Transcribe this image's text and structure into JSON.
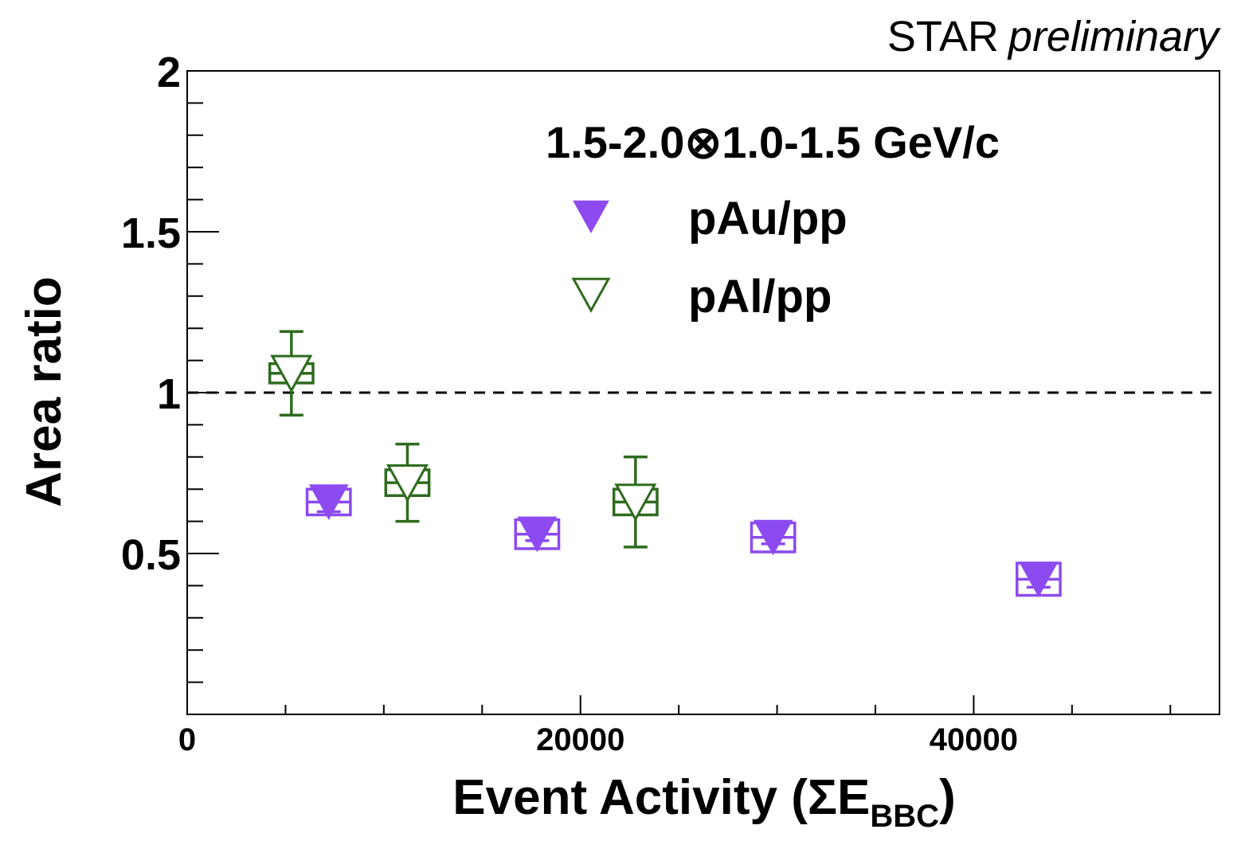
{
  "chart_data": {
    "type": "scatter",
    "header": {
      "main": "STAR",
      "italic": "preliminary"
    },
    "legend": {
      "title": "1.5-2.0⊗1.0-1.5 GeV/c",
      "placement": "top-center"
    },
    "xlabel": {
      "main": "Event Activity (ΣE",
      "sub": "BBC",
      "close": ")"
    },
    "ylabel": "Area ratio",
    "xlim": [
      0,
      52500
    ],
    "ylim": [
      0,
      2
    ],
    "x_ticks": [
      0,
      20000,
      40000
    ],
    "x_tick_labels": [
      "0",
      "20000",
      "40000"
    ],
    "y_ticks": [
      0.5,
      1,
      1.5,
      2
    ],
    "y_tick_labels": [
      "0.5",
      "1",
      "1.5",
      "2"
    ],
    "reference_line": {
      "y": 1,
      "style": "dashed"
    },
    "grid": false,
    "series": [
      {
        "name": "pAu/pp",
        "marker": "filled-triangle-down",
        "color": "#8c4af0",
        "points": [
          {
            "x": 7200,
            "y": 0.66,
            "stat_err": 0.03,
            "sys_err": 0.04,
            "x_box_half": 1100
          },
          {
            "x": 17800,
            "y": 0.56,
            "stat_err": 0.02,
            "sys_err": 0.045,
            "x_box_half": 1100
          },
          {
            "x": 29800,
            "y": 0.55,
            "stat_err": 0.02,
            "sys_err": 0.045,
            "x_box_half": 1100
          },
          {
            "x": 43300,
            "y": 0.42,
            "stat_err": 0.025,
            "sys_err": 0.05,
            "x_box_half": 1100
          }
        ]
      },
      {
        "name": "pAl/pp",
        "marker": "open-triangle-down",
        "color": "#2e6b1e",
        "points": [
          {
            "x": 5300,
            "y": 1.06,
            "stat_err": 0.13,
            "sys_err": 0.03,
            "x_box_half": 1100
          },
          {
            "x": 11200,
            "y": 0.72,
            "stat_err": 0.12,
            "sys_err": 0.04,
            "x_box_half": 1100
          },
          {
            "x": 22800,
            "y": 0.66,
            "stat_err": 0.14,
            "sys_err": 0.04,
            "x_box_half": 1100
          }
        ]
      }
    ]
  }
}
